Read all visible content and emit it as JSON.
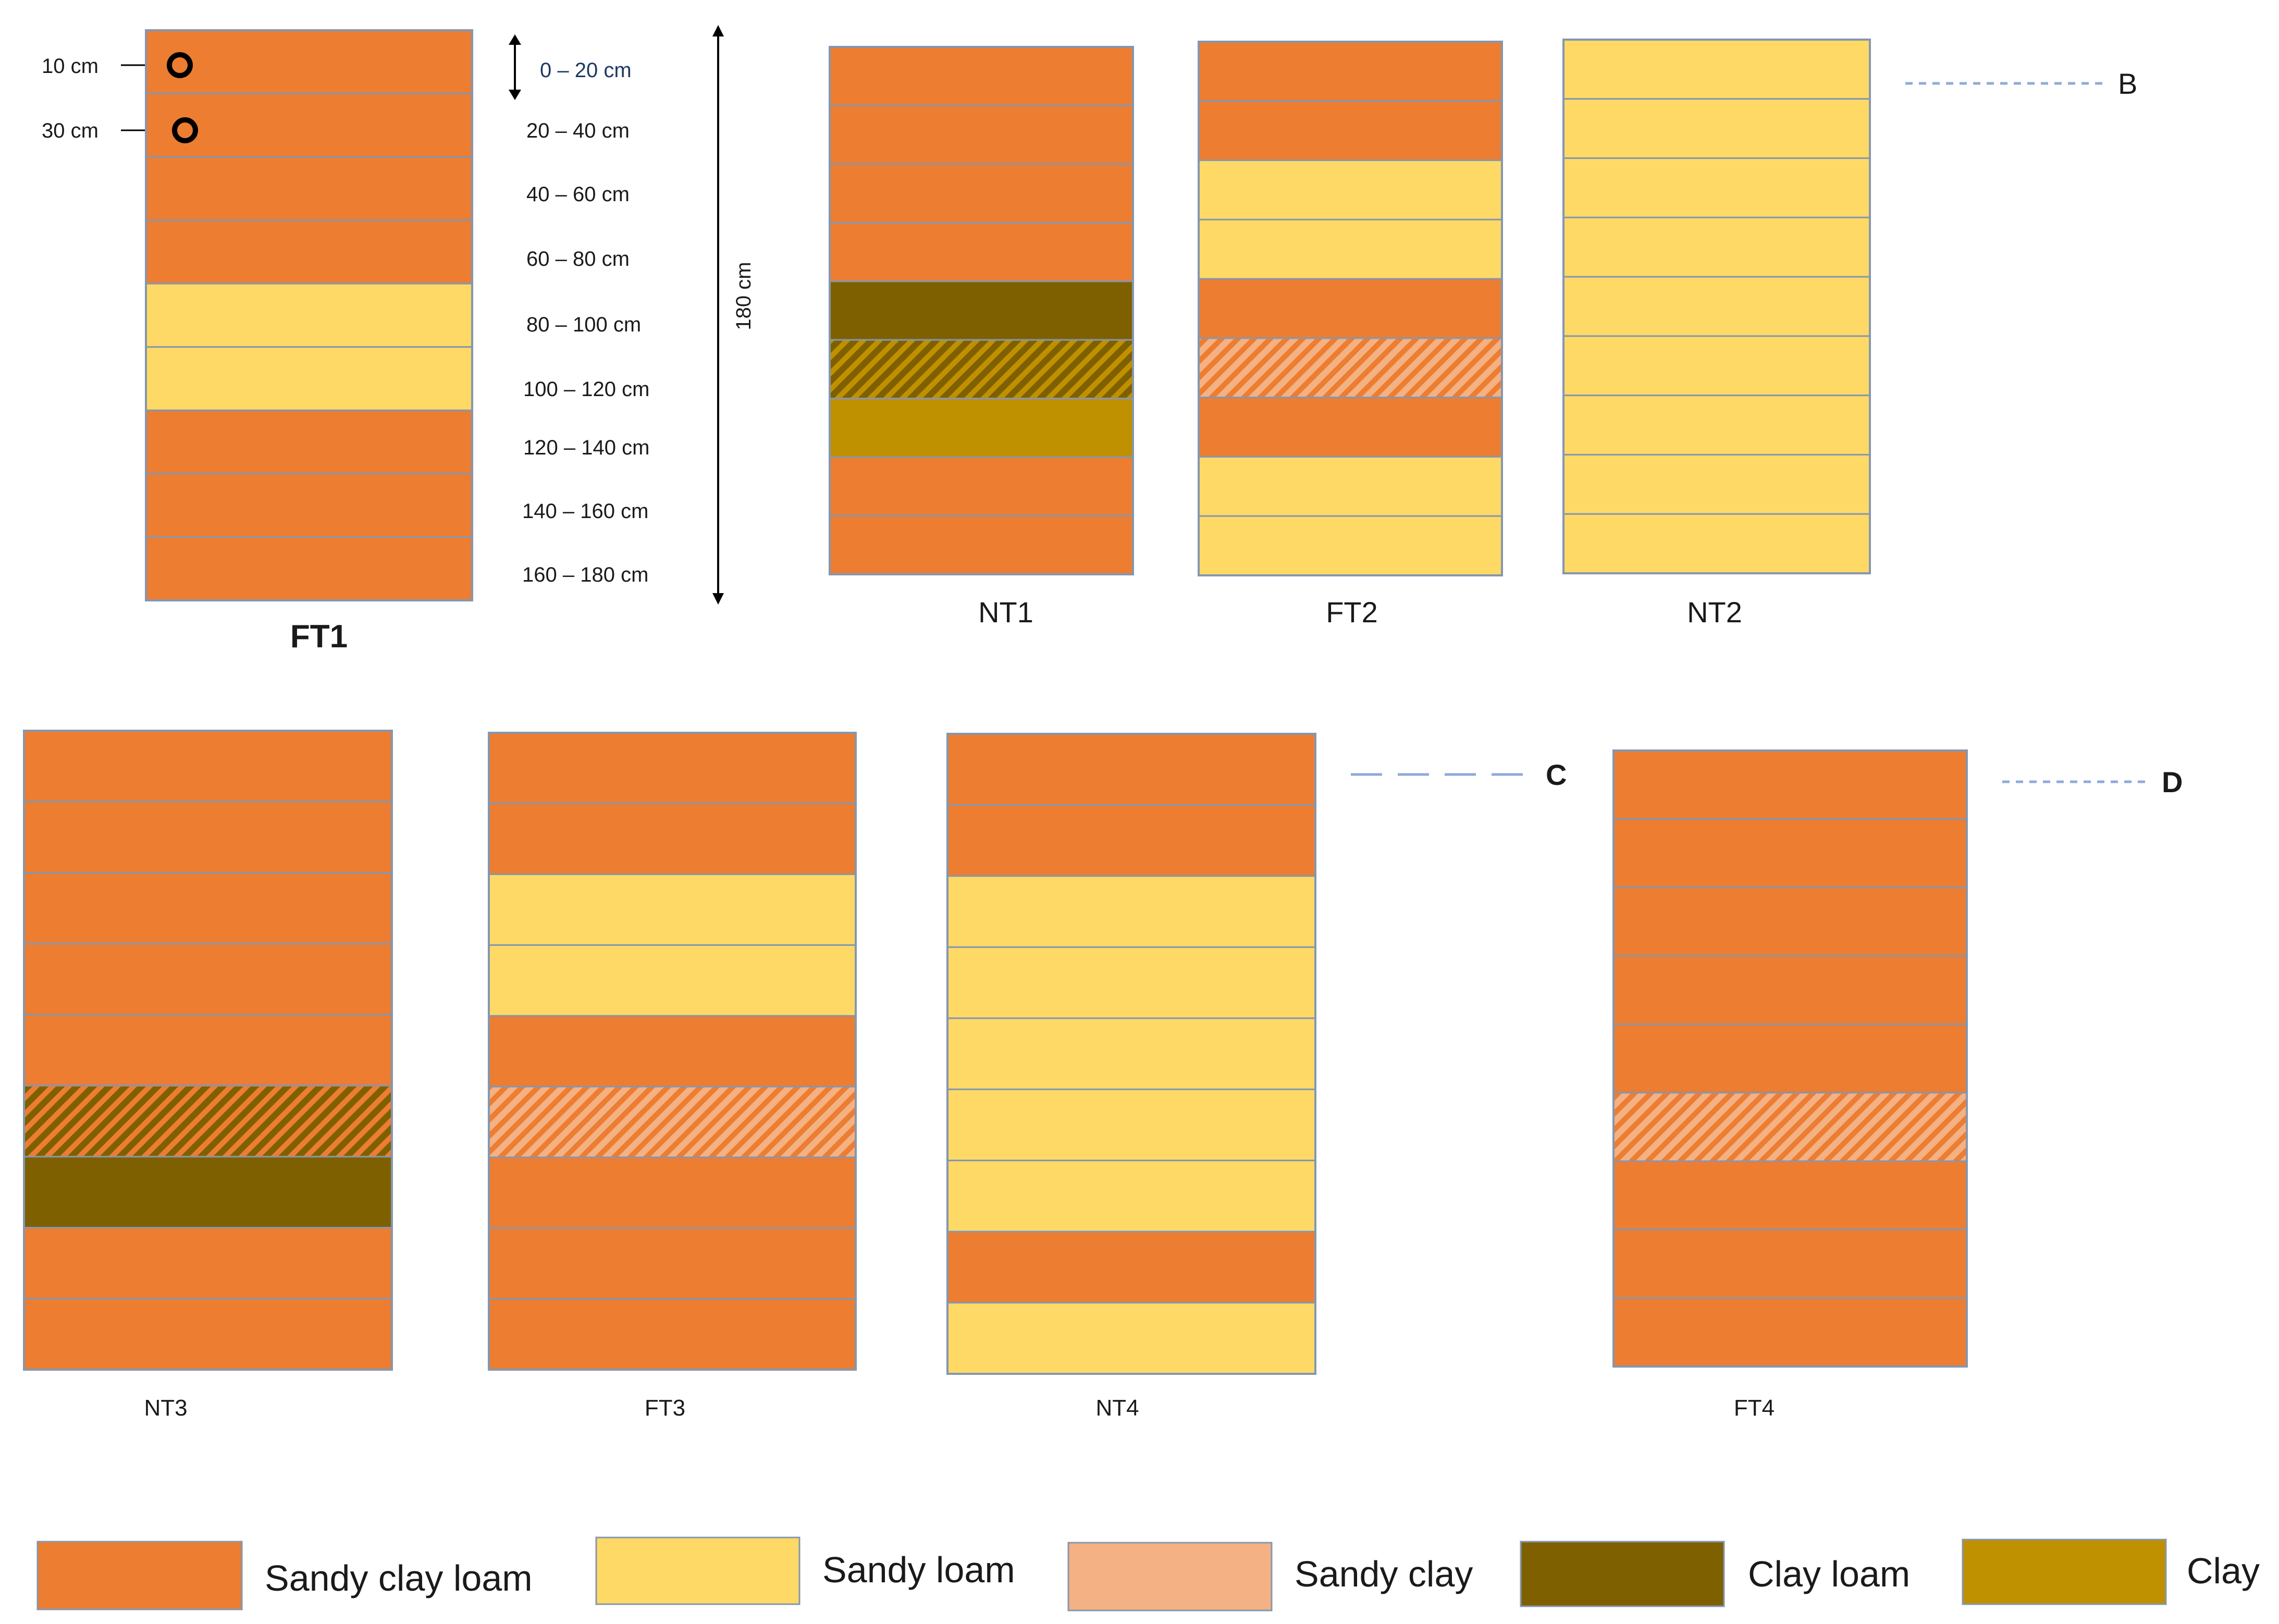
{
  "colors": {
    "sandy_clay_loam": "#ED7D31",
    "sandy_loam": "#FFD966",
    "sandy_clay": "#F4B183",
    "clay_loam": "#7F6000",
    "clay": "#BF9000",
    "layer_line": "#8497B0",
    "dash_line": "#8FAADC",
    "text_dark": "#1a1a1a",
    "text_navy": "#1F3864"
  },
  "depth_scale": {
    "total_label": "180 cm",
    "intervals": [
      "0 – 20 cm",
      "20 – 40 cm",
      "40 – 60 cm",
      "60 – 80 cm",
      "80 – 100 cm",
      "100 – 120 cm",
      "120 – 140 cm",
      "140 – 160 cm",
      "160 – 180 cm"
    ]
  },
  "sensors": [
    {
      "label": "10 cm",
      "depth_cm": 10,
      "icon": "sensor-ring-icon"
    },
    {
      "label": "30 cm",
      "depth_cm": 30,
      "icon": "sensor-ring-icon"
    }
  ],
  "profiles": [
    {
      "id": "FT1",
      "name": "FT1",
      "bold": true,
      "marker": "",
      "layers": [
        "SCL",
        "SCL",
        "SCL",
        "SCL",
        "SL",
        "SL",
        "SCL",
        "SCL",
        "SCL"
      ]
    },
    {
      "id": "NT1",
      "name": "NT1",
      "bold": false,
      "marker": "",
      "layers": [
        "SCL",
        "SCL",
        "SCL",
        "SCL",
        "CL",
        "CL/C",
        "C",
        "SCL",
        "SCL"
      ]
    },
    {
      "id": "FT2",
      "name": "FT2",
      "bold": false,
      "marker": "",
      "layers": [
        "SCL",
        "SCL",
        "SL",
        "SL",
        "SCL",
        "SC/SCL",
        "SCL",
        "SL",
        "SL"
      ]
    },
    {
      "id": "NT2",
      "name": "NT2",
      "bold": false,
      "marker": "B",
      "layers": [
        "SL",
        "SL",
        "SL",
        "SL",
        "SL",
        "SL",
        "SL",
        "SL",
        "SL"
      ]
    },
    {
      "id": "NT3",
      "name": "NT3",
      "bold": false,
      "marker": "",
      "layers": [
        "SCL",
        "SCL",
        "SCL",
        "SCL",
        "SCL",
        "CL/SCL",
        "CL",
        "SCL",
        "SCL"
      ]
    },
    {
      "id": "FT3",
      "name": "FT3",
      "bold": false,
      "marker": "",
      "layers": [
        "SCL",
        "SCL",
        "SL",
        "SL",
        "SCL",
        "SC/SCL",
        "SCL",
        "SCL",
        "SCL"
      ]
    },
    {
      "id": "NT4",
      "name": "NT4",
      "bold": false,
      "marker": "C",
      "layers": [
        "SCL",
        "SCL",
        "SL",
        "SL",
        "SL",
        "SL",
        "SL",
        "SCL",
        "SL"
      ]
    },
    {
      "id": "FT4",
      "name": "FT4",
      "bold": false,
      "marker": "D",
      "layers": [
        "SCL",
        "SCL",
        "SCL",
        "SCL",
        "SCL",
        "SC/SCL",
        "SCL",
        "SCL",
        "SCL"
      ]
    }
  ],
  "legend": [
    {
      "code": "SCL",
      "label": "Sandy clay loam",
      "color": "#ED7D31"
    },
    {
      "code": "SL",
      "label": "Sandy loam",
      "color": "#FFD966"
    },
    {
      "code": "SC",
      "label": "Sandy clay",
      "color": "#F4B183"
    },
    {
      "code": "CL",
      "label": "Clay loam",
      "color": "#7F6000"
    },
    {
      "code": "C",
      "label": "Clay",
      "color": "#BF9000"
    }
  ]
}
